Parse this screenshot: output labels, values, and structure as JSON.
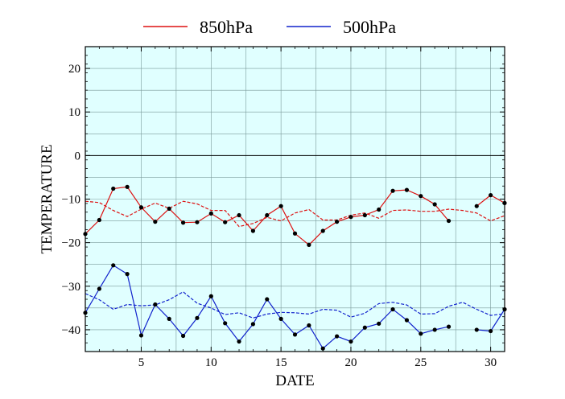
{
  "chart_data": {
    "type": "line",
    "xlabel": "DATE",
    "ylabel": "TEMPERATURE",
    "xlim": [
      1,
      31
    ],
    "ylim": [
      -45,
      25
    ],
    "xticks": [
      5,
      10,
      15,
      20,
      25,
      30
    ],
    "yticks": [
      -40,
      -30,
      -20,
      -10,
      0,
      10,
      20
    ],
    "grid": true,
    "zero_line": true,
    "background": "#e0ffff",
    "legend": {
      "position": "top",
      "items": [
        "850hPa",
        "500hPa"
      ]
    },
    "x": [
      1,
      2,
      3,
      4,
      5,
      6,
      7,
      8,
      9,
      10,
      11,
      12,
      13,
      14,
      15,
      16,
      17,
      18,
      19,
      20,
      21,
      22,
      23,
      24,
      25,
      26,
      27,
      28,
      29,
      30,
      31
    ],
    "series": [
      {
        "name": "850hPa",
        "color": "#dd1111",
        "style": "solid",
        "markers": true,
        "values": [
          -18,
          -14.8,
          -7.6,
          -7.2,
          -11.9,
          -15.2,
          -12.2,
          -15.4,
          -15.3,
          -13.3,
          -15.3,
          -13.7,
          -17.3,
          -13.7,
          -11.6,
          -17.9,
          -20.5,
          -17.3,
          -15.2,
          -14.1,
          -13.7,
          -12.4,
          -8.1,
          -7.9,
          -9.3,
          -11.2,
          -15.0,
          null,
          -11.6,
          -9.1,
          -10.9
        ]
      },
      {
        "name": "500hPa",
        "color": "#1122cc",
        "style": "solid",
        "markers": true,
        "values": [
          -36.1,
          -30.6,
          -25.2,
          -27.2,
          -41.3,
          -34.2,
          -37.5,
          -41.4,
          -37.3,
          -32.3,
          -38.5,
          -42.7,
          -38.7,
          -33.0,
          -37.5,
          -41.1,
          -39.0,
          -44.3,
          -41.5,
          -42.7,
          -39.5,
          -38.6,
          -35.3,
          -37.8,
          -40.9,
          -40.0,
          -39.3,
          null,
          -40.0,
          -40.3,
          -35.3
        ]
      },
      {
        "color": "#dd1111",
        "style": "dashed",
        "markers": false,
        "values": [
          -10.5,
          -10.8,
          -12.6,
          -14.0,
          -12.3,
          -10.9,
          -12.1,
          -10.5,
          -11.1,
          -12.6,
          -12.6,
          -16.3,
          -15.6,
          -14.2,
          -15.0,
          -13.2,
          -12.4,
          -14.8,
          -14.8,
          -13.7,
          -13.2,
          -14.4,
          -12.6,
          -12.5,
          -12.8,
          -12.8,
          -12.3,
          -12.6,
          -13.2,
          -15.0,
          -13.8
        ]
      },
      {
        "color": "#1122cc",
        "style": "dashed",
        "markers": false,
        "values": [
          -31.7,
          -33.1,
          -35.3,
          -34.2,
          -34.5,
          -34.3,
          -33.1,
          -31.3,
          -33.9,
          -35.0,
          -36.5,
          -36.1,
          -37.3,
          -36.4,
          -36.0,
          -36.1,
          -36.4,
          -35.3,
          -35.5,
          -37.1,
          -36.2,
          -34.0,
          -33.7,
          -34.3,
          -36.4,
          -36.3,
          -34.6,
          -33.7,
          -35.3,
          -36.7,
          -36.3
        ]
      }
    ]
  }
}
